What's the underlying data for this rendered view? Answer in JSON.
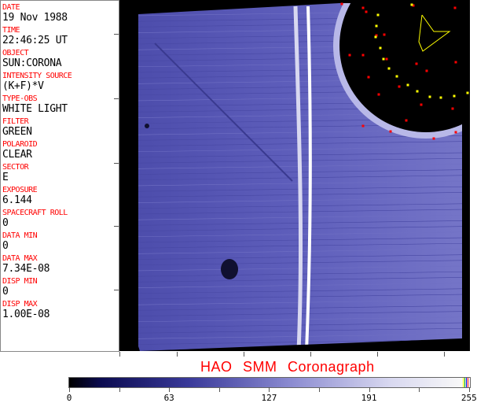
{
  "header_fields": [
    {
      "label": "DATE",
      "value": "19 Nov 1988"
    },
    {
      "label": "TIME",
      "value": "22:46:25 UT"
    },
    {
      "label": "OBJECT",
      "value": "SUN:CORONA"
    },
    {
      "label": "INTENSITY SOURCE",
      "value": "(K+F)*V"
    },
    {
      "label": "TYPE-OBS",
      "value": "WHITE LIGHT"
    },
    {
      "label": "FILTER",
      "value": "GREEN"
    },
    {
      "label": "POLAROID",
      "value": "CLEAR"
    },
    {
      "label": "SECTOR",
      "value": "E"
    },
    {
      "label": "EXPOSURE",
      "value": "6.144"
    },
    {
      "label": "SPACECRAFT ROLL",
      "value": "0"
    },
    {
      "label": "DATA MIN",
      "value": "0"
    },
    {
      "label": "DATA MAX",
      "value": "7.34E-08"
    },
    {
      "label": "DISP MIN",
      "value": "0"
    },
    {
      "label": "DISP MAX",
      "value": "1.00E-08"
    }
  ],
  "title": "HAO  SMM Coronagraph",
  "colorbar": {
    "tick_labels": [
      "0",
      "63",
      "127",
      "191",
      "255"
    ],
    "colors": {
      "low": "#000000",
      "mid": "#8a8ad0",
      "high": "#f8f8f8",
      "marker_yellow": "#ffff00",
      "marker_red": "#ff0000"
    }
  },
  "image": {
    "description_colors": {
      "corona": "#5a5ab8",
      "background": "#000000"
    }
  }
}
